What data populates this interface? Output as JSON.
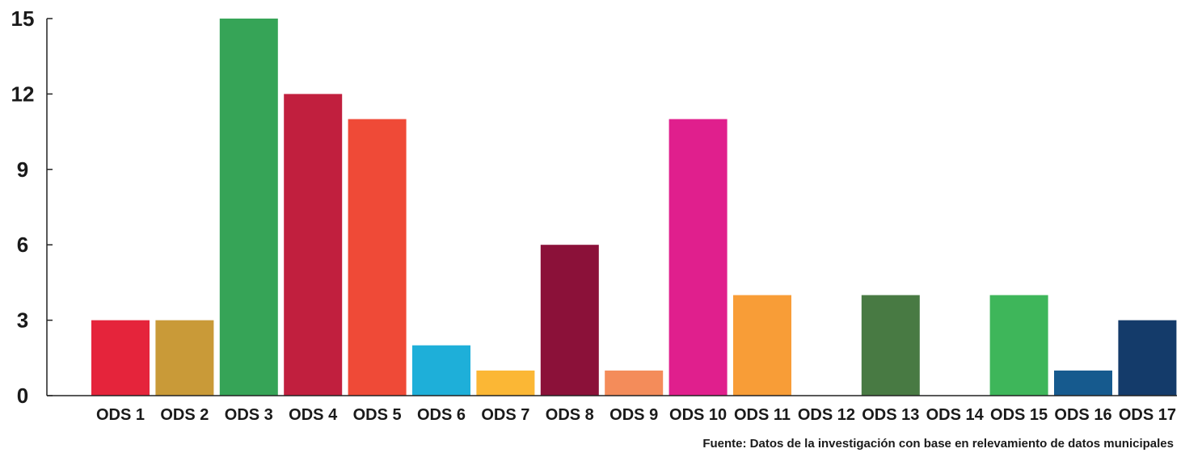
{
  "chart_data": {
    "type": "bar",
    "title": "",
    "xlabel": "",
    "ylabel": "",
    "ylim": [
      0,
      15
    ],
    "yticks": [
      0,
      3,
      6,
      9,
      12,
      15
    ],
    "grid": false,
    "legend": "none",
    "categories": [
      "ODS 1",
      "ODS 2",
      "ODS 3",
      "ODS 4",
      "ODS 5",
      "ODS 6",
      "ODS 7",
      "ODS 8",
      "ODS 9",
      "ODS 10",
      "ODS 11",
      "ODS 12",
      "ODS 13",
      "ODS 14",
      "ODS 15",
      "ODS 16",
      "ODS 17"
    ],
    "values": [
      3,
      3,
      15,
      12,
      11,
      2,
      1,
      6,
      1,
      11,
      4,
      0,
      4,
      0,
      4,
      1,
      3
    ],
    "colors": [
      "#e5243b",
      "#c99a38",
      "#36a457",
      "#c11f3e",
      "#ef4a37",
      "#1eafd9",
      "#fbb735",
      "#8b1139",
      "#f48c5a",
      "#e01f8d",
      "#f89d37",
      "#bf8b2e",
      "#487a43",
      "#0a97d9",
      "#3eb65a",
      "#165a8e",
      "#143b6a"
    ]
  },
  "source_note": "Fuente: Datos de la investigación con base en relevamiento de datos municipales"
}
